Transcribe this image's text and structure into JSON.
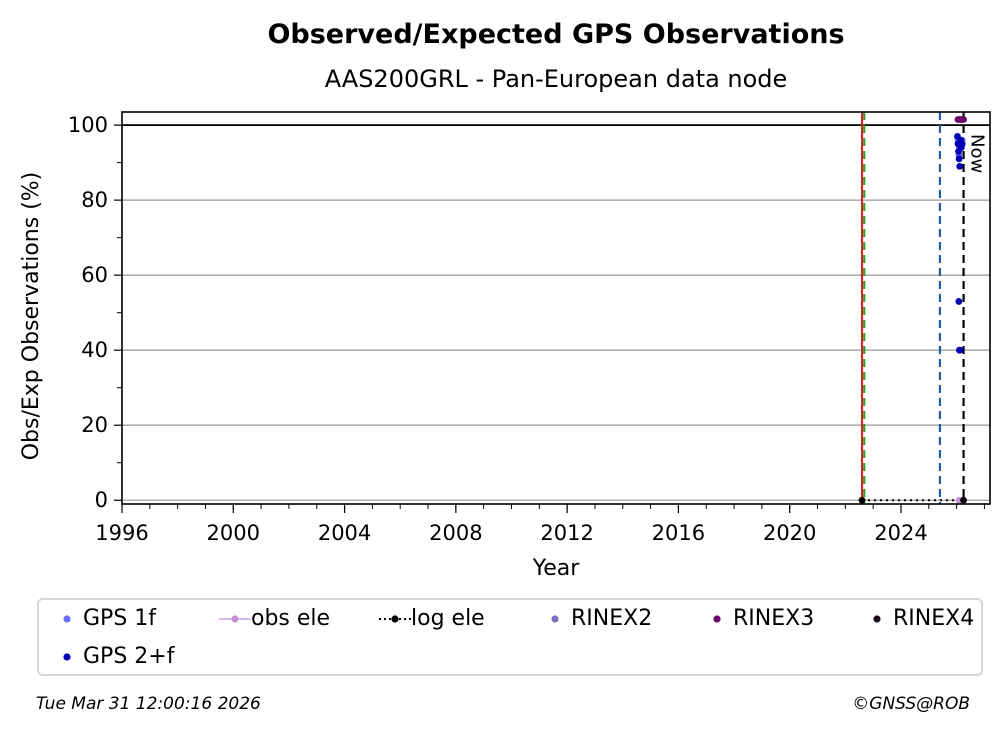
{
  "chart_data": {
    "type": "scatter",
    "title": "Observed/Expected GPS Observations",
    "subtitle": "AAS200GRL - Pan-European data node",
    "xlabel": "Year",
    "ylabel": "Obs/Exp Observations (%)",
    "xlim": [
      1996,
      2027.2
    ],
    "ylim": [
      -1,
      103.5
    ],
    "x_ticks": [
      "1996",
      "2000",
      "2004",
      "2008",
      "2012",
      "2016",
      "2020",
      "2024"
    ],
    "x_tick_values": [
      1996,
      2000,
      2004,
      2008,
      2012,
      2016,
      2020,
      2024
    ],
    "y_ticks": [
      "0",
      "20",
      "40",
      "60",
      "80",
      "100"
    ],
    "y_tick_values": [
      0,
      20,
      40,
      60,
      80,
      100
    ],
    "grid": "horizontal",
    "reference_line_y": 100,
    "vertical_lines": [
      {
        "x": 2022.6,
        "color": "#d62728",
        "style": "solid"
      },
      {
        "x": 2022.68,
        "color": "#2ca02c",
        "style": "dashed"
      },
      {
        "x": 2025.4,
        "color": "#1f5fa0",
        "style": "dashed"
      },
      {
        "x": 2026.25,
        "color": "#000000",
        "style": "dashed",
        "label": "Now"
      }
    ],
    "log_ele_line": {
      "x_start": 2022.6,
      "x_end": 2026.25,
      "y": 0
    },
    "series": [
      {
        "name": "GPS 1f",
        "color": "#6b6bff",
        "points": [
          [
            2026.05,
            96
          ],
          [
            2026.1,
            94
          ],
          [
            2026.15,
            95
          ],
          [
            2026.2,
            96
          ],
          [
            2026.08,
            92
          ]
        ]
      },
      {
        "name": "obs ele",
        "color": "#c491d4",
        "points": [
          [
            2026.1,
            0
          ],
          [
            2026.2,
            0
          ]
        ]
      },
      {
        "name": "log ele",
        "color": "#000000",
        "points": [
          [
            2022.6,
            0
          ],
          [
            2026.25,
            0
          ]
        ]
      },
      {
        "name": "RINEX2",
        "color": "#7a6fc0",
        "points": []
      },
      {
        "name": "RINEX3",
        "color": "#6a006a",
        "points": [
          [
            2026.05,
            101.5
          ],
          [
            2026.1,
            101.5
          ],
          [
            2026.15,
            101.5
          ],
          [
            2026.2,
            101.5
          ],
          [
            2026.25,
            101.5
          ]
        ]
      },
      {
        "name": "RINEX4",
        "color": "#1a0a1a",
        "points": []
      },
      {
        "name": "GPS 2+f",
        "color": "#0000b4",
        "points": [
          [
            2026.03,
            97
          ],
          [
            2026.05,
            95
          ],
          [
            2026.07,
            93
          ],
          [
            2026.09,
            91
          ],
          [
            2026.11,
            89
          ],
          [
            2026.13,
            95
          ],
          [
            2026.15,
            96
          ],
          [
            2026.17,
            94
          ],
          [
            2026.2,
            95
          ],
          [
            2026.08,
            53
          ],
          [
            2026.1,
            40
          ],
          [
            2026.12,
            40
          ]
        ]
      }
    ]
  },
  "legend": {
    "items": [
      {
        "label": "GPS 1f",
        "color": "#6b6bff",
        "kind": "dot"
      },
      {
        "label": "obs ele",
        "color": "#c491d4",
        "kind": "line-dot"
      },
      {
        "label": "log ele",
        "color": "#000000",
        "kind": "dotted-line"
      },
      {
        "label": "RINEX2",
        "color": "#7a6fc0",
        "kind": "dot"
      },
      {
        "label": "RINEX3",
        "color": "#6a006a",
        "kind": "dot"
      },
      {
        "label": "RINEX4",
        "color": "#1a0a1a",
        "kind": "dot"
      },
      {
        "label": "GPS 2+f",
        "color": "#0000b4",
        "kind": "dot"
      }
    ]
  },
  "footer": {
    "timestamp": "Tue Mar 31 12:00:16 2026",
    "credit": "©GNSS@ROB"
  }
}
